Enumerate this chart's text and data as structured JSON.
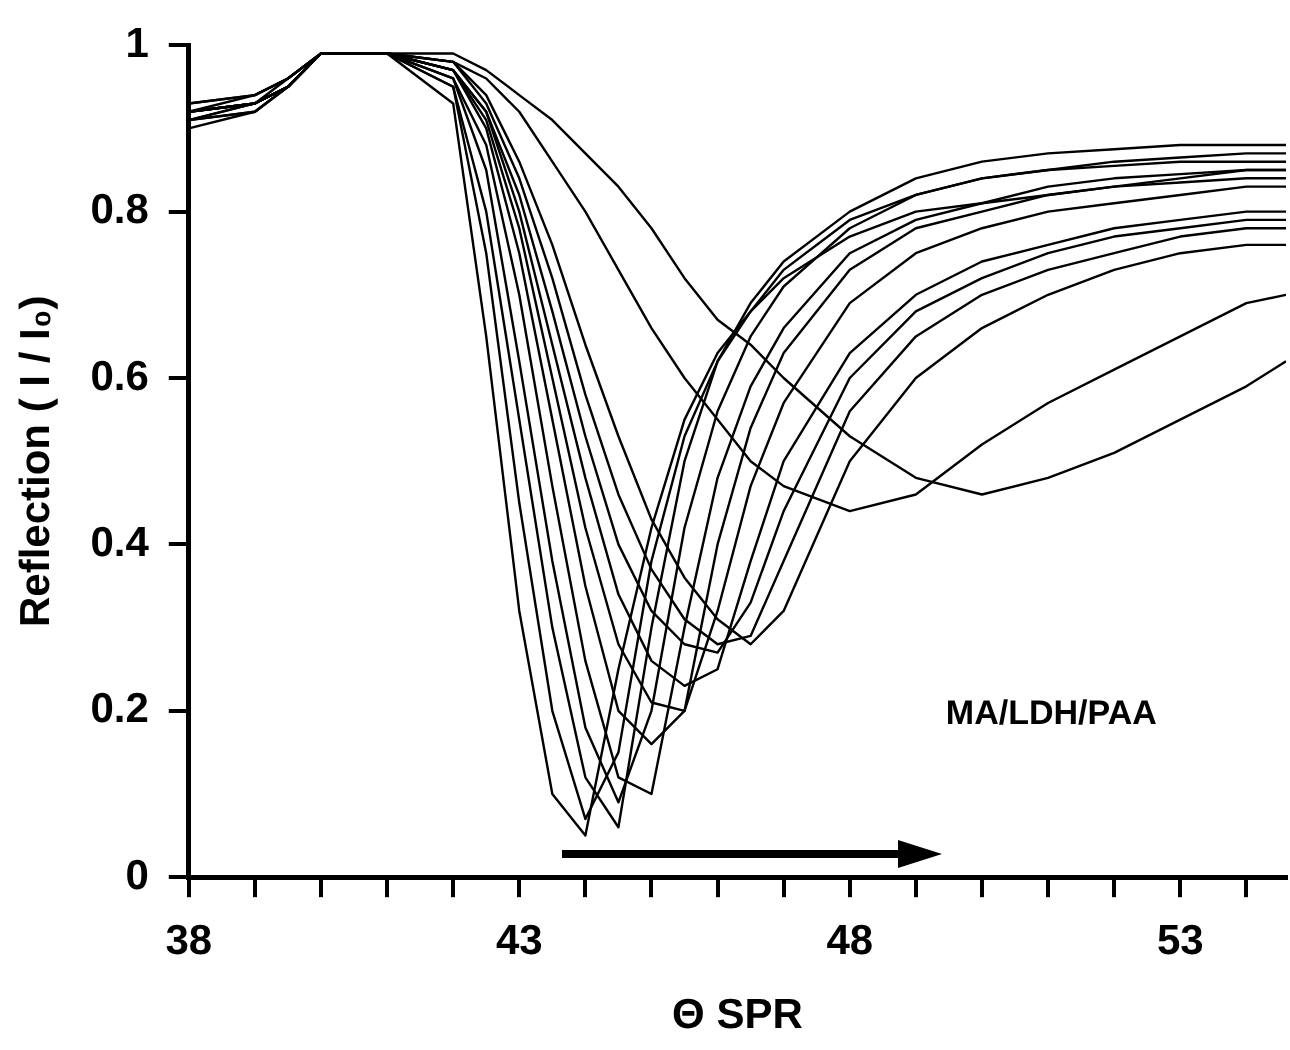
{
  "chart_data": {
    "type": "line",
    "xlabel": "Θ SPR",
    "ylabel": "Reflection ( I / I₀)",
    "annotations": [
      "MA/LDH/PAA"
    ],
    "xlim": [
      38,
      54.6
    ],
    "ylim": [
      0,
      1
    ],
    "xticks": [
      38,
      {
        "value": 39,
        "label": null
      },
      {
        "value": 40,
        "label": null
      },
      {
        "value": 41,
        "label": null
      },
      {
        "value": 42,
        "label": null
      },
      43,
      {
        "value": 44,
        "label": null
      },
      {
        "value": 45,
        "label": null
      },
      {
        "value": 46,
        "label": null
      },
      {
        "value": 47,
        "label": null
      },
      48,
      {
        "value": 49,
        "label": null
      },
      {
        "value": 50,
        "label": null
      },
      {
        "value": 51,
        "label": null
      },
      {
        "value": 52,
        "label": null
      },
      53,
      {
        "value": 54,
        "label": null
      }
    ],
    "yticks": [
      0,
      0.2,
      0.4,
      0.6,
      0.8,
      1
    ],
    "grid": false,
    "legend": false,
    "x": [
      38,
      39,
      39.5,
      40,
      41,
      42,
      42.5,
      43,
      43.5,
      44,
      44.5,
      45,
      45.5,
      46,
      46.5,
      47,
      48,
      49,
      50,
      51,
      52,
      53,
      54,
      54.6
    ],
    "series": [
      {
        "color": "#000000",
        "values": [
          0.92,
          0.94,
          0.96,
          0.99,
          0.99,
          0.93,
          0.65,
          0.32,
          0.1,
          0.05,
          0.25,
          0.42,
          0.55,
          0.63,
          0.68,
          0.72,
          0.77,
          0.8,
          0.81,
          0.82,
          0.83,
          0.835,
          0.84,
          0.84
        ]
      },
      {
        "color": "#000000",
        "values": [
          0.93,
          0.94,
          0.96,
          0.99,
          0.99,
          0.95,
          0.75,
          0.45,
          0.2,
          0.07,
          0.15,
          0.38,
          0.53,
          0.62,
          0.68,
          0.73,
          0.79,
          0.82,
          0.84,
          0.85,
          0.855,
          0.86,
          0.86,
          0.86
        ]
      },
      {
        "color": "#000000",
        "values": [
          0.91,
          0.93,
          0.95,
          0.99,
          0.99,
          0.95,
          0.8,
          0.55,
          0.3,
          0.12,
          0.06,
          0.3,
          0.5,
          0.62,
          0.69,
          0.74,
          0.8,
          0.84,
          0.86,
          0.87,
          0.875,
          0.88,
          0.88,
          0.88
        ]
      },
      {
        "color": "#000000",
        "values": [
          0.92,
          0.93,
          0.95,
          0.99,
          0.99,
          0.96,
          0.85,
          0.62,
          0.38,
          0.18,
          0.09,
          0.2,
          0.42,
          0.56,
          0.65,
          0.71,
          0.78,
          0.82,
          0.84,
          0.85,
          0.86,
          0.865,
          0.87,
          0.87
        ]
      },
      {
        "color": "#000000",
        "values": [
          0.91,
          0.92,
          0.95,
          0.99,
          0.99,
          0.96,
          0.88,
          0.7,
          0.47,
          0.26,
          0.12,
          0.1,
          0.3,
          0.48,
          0.59,
          0.66,
          0.75,
          0.79,
          0.81,
          0.83,
          0.84,
          0.845,
          0.85,
          0.85
        ]
      },
      {
        "color": "#000000",
        "values": [
          0.93,
          0.94,
          0.96,
          0.99,
          0.99,
          0.97,
          0.9,
          0.75,
          0.55,
          0.35,
          0.2,
          0.16,
          0.2,
          0.4,
          0.54,
          0.63,
          0.73,
          0.78,
          0.8,
          0.82,
          0.83,
          0.84,
          0.85,
          0.85
        ]
      },
      {
        "color": "#000000",
        "values": [
          0.92,
          0.93,
          0.95,
          0.99,
          0.99,
          0.97,
          0.91,
          0.78,
          0.6,
          0.42,
          0.28,
          0.21,
          0.2,
          0.32,
          0.47,
          0.57,
          0.69,
          0.75,
          0.78,
          0.8,
          0.81,
          0.82,
          0.83,
          0.83
        ]
      },
      {
        "color": "#000000",
        "values": [
          0.9,
          0.92,
          0.95,
          0.99,
          0.99,
          0.97,
          0.92,
          0.8,
          0.64,
          0.48,
          0.34,
          0.26,
          0.23,
          0.25,
          0.38,
          0.5,
          0.63,
          0.7,
          0.74,
          0.76,
          0.78,
          0.79,
          0.8,
          0.8
        ]
      },
      {
        "color": "#000000",
        "values": [
          0.92,
          0.93,
          0.95,
          0.99,
          0.99,
          0.97,
          0.92,
          0.82,
          0.68,
          0.53,
          0.4,
          0.32,
          0.28,
          0.27,
          0.33,
          0.44,
          0.6,
          0.68,
          0.72,
          0.75,
          0.77,
          0.78,
          0.79,
          0.79
        ]
      },
      {
        "color": "#000000",
        "values": [
          0.91,
          0.93,
          0.96,
          0.99,
          0.99,
          0.98,
          0.93,
          0.84,
          0.72,
          0.58,
          0.46,
          0.37,
          0.31,
          0.28,
          0.29,
          0.38,
          0.56,
          0.65,
          0.7,
          0.73,
          0.75,
          0.77,
          0.78,
          0.78
        ]
      },
      {
        "color": "#000000",
        "values": [
          0.92,
          0.93,
          0.95,
          0.99,
          0.99,
          0.98,
          0.94,
          0.86,
          0.76,
          0.64,
          0.53,
          0.43,
          0.36,
          0.31,
          0.28,
          0.32,
          0.5,
          0.6,
          0.66,
          0.7,
          0.73,
          0.75,
          0.76,
          0.76
        ]
      },
      {
        "color": "#000000",
        "values": [
          0.91,
          0.92,
          0.95,
          0.99,
          0.99,
          0.98,
          0.96,
          0.92,
          0.86,
          0.8,
          0.73,
          0.66,
          0.6,
          0.55,
          0.5,
          0.47,
          0.44,
          0.46,
          0.52,
          0.57,
          0.61,
          0.65,
          0.69,
          0.7
        ]
      },
      {
        "color": "#000000",
        "values": [
          0.92,
          0.93,
          0.95,
          0.99,
          0.99,
          0.99,
          0.97,
          0.94,
          0.91,
          0.87,
          0.83,
          0.78,
          0.72,
          0.67,
          0.64,
          0.6,
          0.53,
          0.48,
          0.46,
          0.48,
          0.51,
          0.55,
          0.59,
          0.62
        ]
      }
    ]
  }
}
